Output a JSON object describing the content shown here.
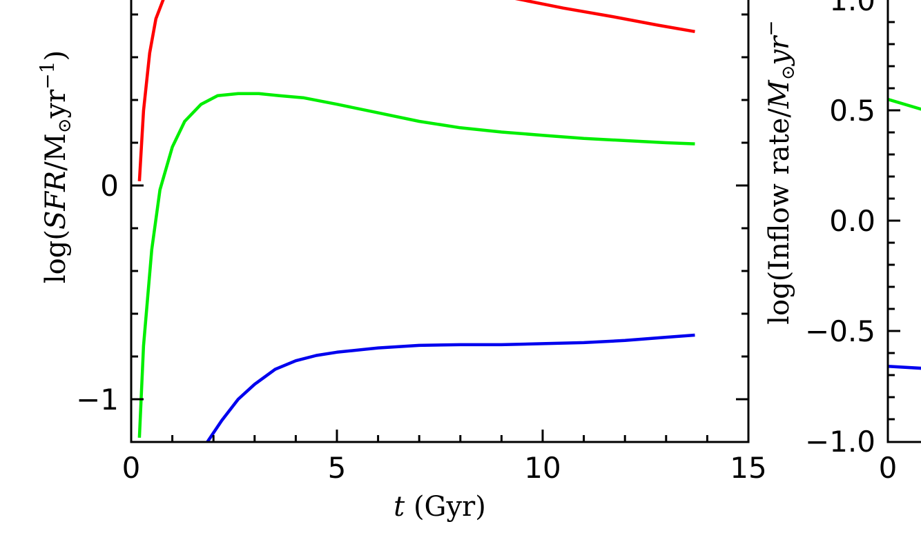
{
  "chart_data": [
    {
      "type": "line",
      "xlabel": "t (Gyr)",
      "ylabel": "log(SFR/M⊙yr⁻¹)",
      "xlim": [
        0,
        15
      ],
      "ylim": [
        -1.2,
        0.9
      ],
      "xticks": [
        "0",
        "5",
        "10",
        "15"
      ],
      "yticks": [
        "0",
        "−1"
      ],
      "grid": false,
      "series": [
        {
          "color": "#ff0000",
          "x": [
            0.2,
            0.3,
            0.45,
            0.6,
            0.8,
            1.0,
            1.3,
            9.2,
            10.5,
            11.7,
            12.8,
            13.7
          ],
          "y": [
            0.02,
            0.35,
            0.62,
            0.78,
            0.88,
            0.94,
            1.0,
            0.88,
            0.83,
            0.79,
            0.75,
            0.72
          ]
        },
        {
          "color": "#00ee00",
          "x": [
            0.2,
            0.3,
            0.5,
            0.7,
            1.0,
            1.3,
            1.7,
            2.1,
            2.6,
            3.1,
            3.6,
            4.2,
            5.0,
            6.0,
            7.0,
            8.0,
            9.0,
            10.0,
            11.0,
            12.0,
            13.0,
            13.7
          ],
          "y": [
            -1.18,
            -0.75,
            -0.3,
            -0.02,
            0.18,
            0.3,
            0.38,
            0.42,
            0.43,
            0.43,
            0.42,
            0.41,
            0.38,
            0.34,
            0.3,
            0.27,
            0.25,
            0.235,
            0.22,
            0.21,
            0.2,
            0.195
          ]
        },
        {
          "color": "#0000ee",
          "x": [
            1.85,
            2.2,
            2.6,
            3.0,
            3.5,
            4.0,
            4.5,
            5.0,
            6.0,
            7.0,
            8.0,
            9.0,
            10.0,
            11.0,
            12.0,
            13.0,
            13.7
          ],
          "y": [
            -1.2,
            -1.1,
            -1.0,
            -0.93,
            -0.86,
            -0.82,
            -0.795,
            -0.78,
            -0.76,
            -0.748,
            -0.745,
            -0.745,
            -0.74,
            -0.735,
            -0.725,
            -0.71,
            -0.7
          ]
        }
      ]
    },
    {
      "type": "line",
      "ylabel": "log(Inflow rate/M⊙yr⁻",
      "xlim": [
        0,
        15
      ],
      "ylim": [
        -1.0,
        1.0
      ],
      "xticks": [
        "0"
      ],
      "yticks": [
        "1.0",
        "0.5",
        "0.0",
        "−0.5",
        "−1.0"
      ],
      "grid": false,
      "series": [
        {
          "color": "#00ee00",
          "x": [
            0,
            0.9
          ],
          "y": [
            0.55,
            0.5
          ]
        },
        {
          "color": "#0000ee",
          "x": [
            0,
            0.9
          ],
          "y": [
            -0.66,
            -0.67
          ]
        }
      ]
    }
  ]
}
